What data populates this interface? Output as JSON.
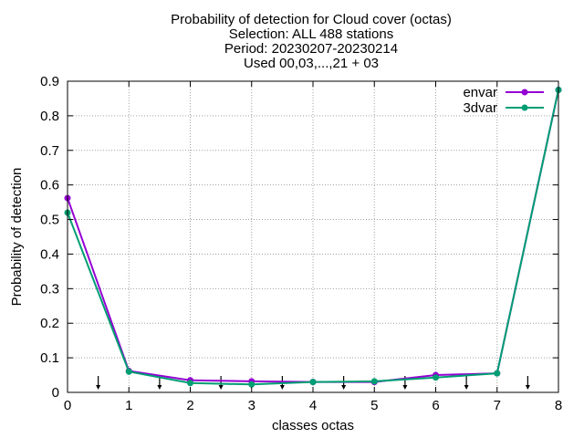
{
  "chart_data": {
    "type": "line",
    "title_lines": [
      "Probability of detection  for Cloud cover (octas)",
      "Selection: ALL    488 stations",
      "Period: 20230207-20230214",
      "Used 00,03,...,21 + 03"
    ],
    "xlabel": "classes octas",
    "ylabel": "Probability of detection",
    "xlim": [
      0,
      8
    ],
    "ylim": [
      0,
      0.9
    ],
    "x_ticks": [
      "0",
      "1",
      "2",
      "3",
      "4",
      "5",
      "6",
      "7",
      "8"
    ],
    "y_ticks": [
      "0",
      "0.1",
      "0.2",
      "0.3",
      "0.4",
      "0.5",
      "0.6",
      "0.7",
      "0.8",
      "0.9"
    ],
    "grid": true,
    "legend_position": "top-right",
    "x": [
      0,
      1,
      2,
      3,
      4,
      5,
      6,
      7,
      8
    ],
    "series": [
      {
        "name": "envar",
        "color": "#9400d3",
        "values": [
          0.562,
          0.062,
          0.035,
          0.032,
          0.03,
          0.03,
          0.05,
          0.055,
          0.875
        ]
      },
      {
        "name": "3dvar",
        "color": "#009e73",
        "values": [
          0.52,
          0.06,
          0.027,
          0.023,
          0.03,
          0.032,
          0.043,
          0.055,
          0.875
        ]
      }
    ],
    "arrow_markers_x": [
      0.5,
      1.5,
      2.5,
      3.5,
      4.5,
      5.5,
      6.5,
      7.5
    ]
  }
}
